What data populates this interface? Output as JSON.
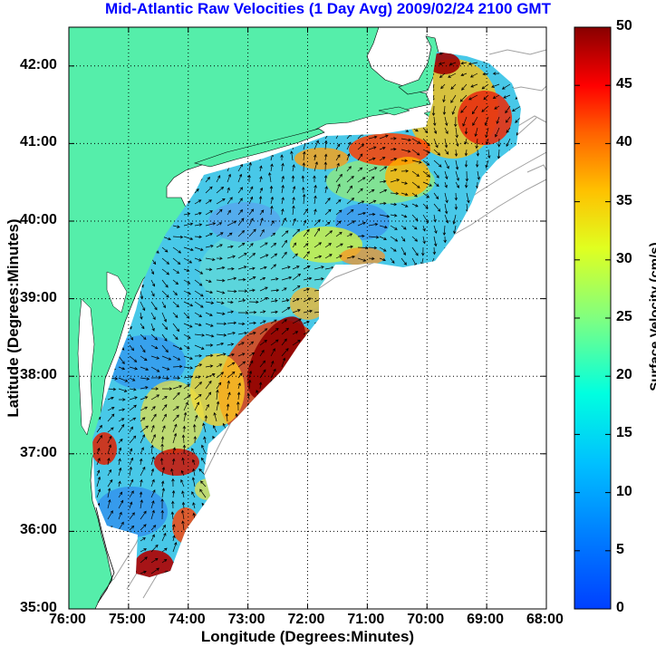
{
  "title": "Mid-Atlantic Raw Velocities (1 Day Avg) 2009/02/24 2100 GMT",
  "xlabel": "Longitude (Degrees:Minutes)",
  "ylabel": "Latitude (Degrees:Minutes)",
  "colorbar_label": "Surface Velocity (cm/s)",
  "x_ticks": [
    "76:00",
    "75:00",
    "74:00",
    "73:00",
    "72:00",
    "71:00",
    "70:00",
    "69:00",
    "68:00"
  ],
  "y_ticks": [
    "35:00",
    "36:00",
    "37:00",
    "38:00",
    "39:00",
    "40:00",
    "41:00",
    "42:00"
  ],
  "colorbar_ticks": [
    "0",
    "5",
    "10",
    "15",
    "20",
    "25",
    "30",
    "35",
    "40",
    "45",
    "50"
  ],
  "colors": {
    "land": "#55eeaa",
    "ocean": "#ffffff",
    "grid": "#000000",
    "bathymetry": "#a0a0a0",
    "title": "#0000ff"
  },
  "chart_data": {
    "type": "heatmap",
    "title": "Mid-Atlantic Raw Velocities (1 Day Avg) 2009/02/24 2100 GMT",
    "xlabel": "Longitude (Degrees:Minutes)",
    "ylabel": "Latitude (Degrees:Minutes)",
    "xlim": [
      -76,
      -68
    ],
    "ylim": [
      35,
      42.5
    ],
    "colorbar": {
      "label": "Surface Velocity (cm/s)",
      "range": [
        0,
        50
      ],
      "colormap": "jet"
    },
    "grid": true,
    "hotspots": [
      {
        "name": "",
        "lon": -72.7,
        "lat": 38.3,
        "speed": 50
      },
      {
        "name": "",
        "lon": -69.3,
        "lat": 41.5,
        "speed": 45
      },
      {
        "name": "",
        "lon": -74.4,
        "lat": 35.4,
        "speed": 45
      },
      {
        "name": "",
        "lon": -74.4,
        "lat": 36.9,
        "speed": 40
      },
      {
        "name": "",
        "lon": -75.5,
        "lat": 37.1,
        "speed": 38
      },
      {
        "name": "",
        "lon": -70.6,
        "lat": 41.0,
        "speed": 38
      },
      {
        "name": "",
        "lon": -71.2,
        "lat": 40.8,
        "speed": 30
      }
    ]
  }
}
